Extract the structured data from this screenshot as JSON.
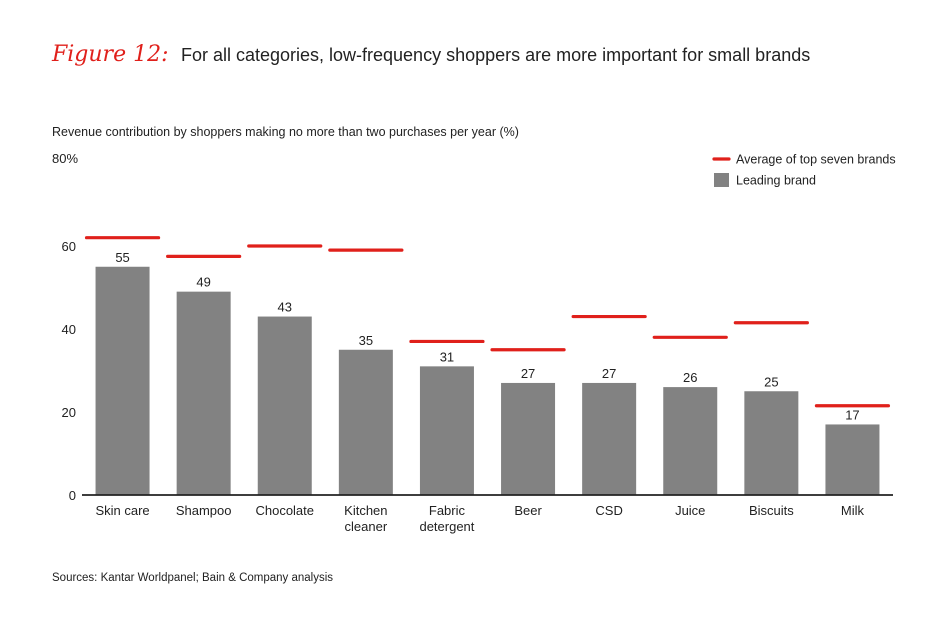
{
  "header": {
    "figure_label": "Figure 12:",
    "title": "For all categories, low-frequency shoppers are more important for small brands"
  },
  "axis": {
    "ytitle": "Revenue contribution by shoppers making no more than two purchases per year (%)",
    "ymax_label": "80%"
  },
  "source": "Sources: Kantar Worldpanel; Bain & Company analysis",
  "chart_data": {
    "type": "bar",
    "categories": [
      "Skin care",
      "Shampoo",
      "Chocolate",
      "Kitchen\ncleaner",
      "Fabric\ndetergent",
      "Beer",
      "CSD",
      "Juice",
      "Biscuits",
      "Milk"
    ],
    "series": [
      {
        "name": "Leading brand",
        "values": [
          55,
          49,
          43,
          35,
          31,
          27,
          27,
          26,
          25,
          17
        ],
        "color": "#828282"
      },
      {
        "name": "Average of top seven brands",
        "values": [
          62,
          57.5,
          60,
          59,
          37,
          35,
          43,
          38,
          41.5,
          21.5
        ],
        "color": "#e0201b"
      }
    ],
    "data_labels": [
      "55",
      "49",
      "43",
      "35",
      "31",
      "27",
      "27",
      "26",
      "25",
      "17"
    ],
    "yticks": [
      0,
      20,
      40,
      60
    ],
    "ylim": [
      0,
      80
    ],
    "legend_position": "top-right",
    "grid": false
  }
}
